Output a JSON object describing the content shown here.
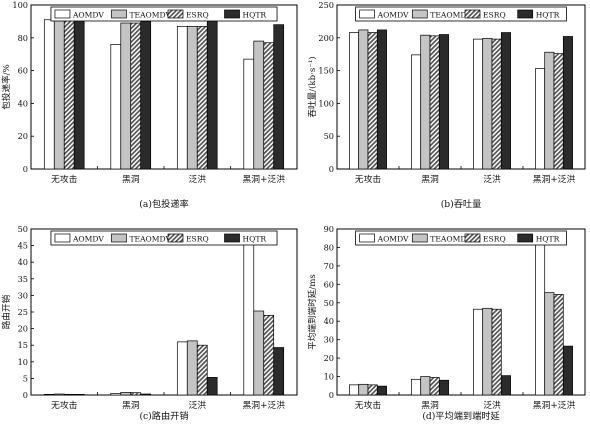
{
  "figure": {
    "legend_labels": [
      "AOMDV",
      "TEAOMDV",
      "ESRQ",
      "HQTR"
    ],
    "colors": {
      "AOMDV": "#ffffff",
      "TEAOMDV": "#c4c4c4",
      "ESRQ": "#8a8a8a",
      "HQTR": "#2b2b2b",
      "axis": "#000000"
    }
  },
  "chart_data": [
    {
      "type": "bar",
      "caption": "(a)包投递率",
      "xlabel": "",
      "ylabel": "包投递率/%",
      "categories": [
        "无攻击",
        "黑洞",
        "泛洪",
        "黑洞+泛洪"
      ],
      "ylim": [
        0,
        100
      ],
      "yticks": [
        0,
        20,
        40,
        60,
        80,
        100
      ],
      "legend_position": "top-center",
      "series": [
        {
          "name": "AOMDV",
          "values": [
            91,
            76,
            87,
            67
          ]
        },
        {
          "name": "TEAOMDV",
          "values": [
            93,
            89,
            87,
            78
          ]
        },
        {
          "name": "ESRQ",
          "values": [
            91,
            89,
            87,
            77
          ]
        },
        {
          "name": "HQTR",
          "values": [
            93,
            90,
            91,
            88
          ]
        }
      ]
    },
    {
      "type": "bar",
      "caption": "(b)吞吐量",
      "xlabel": "",
      "ylabel": "吞吐量/(kb·s⁻¹)",
      "categories": [
        "无攻击",
        "黑洞",
        "泛洪",
        "黑洞+泛洪"
      ],
      "ylim": [
        0,
        250
      ],
      "yticks": [
        0,
        50,
        100,
        150,
        200,
        250
      ],
      "legend_position": "top-center",
      "series": [
        {
          "name": "AOMDV",
          "values": [
            208,
            174,
            198,
            153
          ]
        },
        {
          "name": "TEAOMDV",
          "values": [
            212,
            204,
            199,
            178
          ]
        },
        {
          "name": "ESRQ",
          "values": [
            208,
            203,
            198,
            176
          ]
        },
        {
          "name": "HQTR",
          "values": [
            212,
            205,
            208,
            202
          ]
        }
      ]
    },
    {
      "type": "bar",
      "caption": "(c)路由开销",
      "xlabel": "",
      "ylabel": "路由开销",
      "categories": [
        "无攻击",
        "黑洞",
        "泛洪",
        "黑洞+泛洪"
      ],
      "ylim": [
        0,
        50
      ],
      "yticks": [
        0,
        5,
        10,
        15,
        20,
        25,
        30,
        35,
        40,
        45,
        50
      ],
      "legend_position": "top-center",
      "series": [
        {
          "name": "AOMDV",
          "values": [
            0.2,
            0.5,
            16.0,
            45.5
          ]
        },
        {
          "name": "TEAOMDV",
          "values": [
            0.3,
            0.8,
            16.3,
            25.3
          ]
        },
        {
          "name": "ESRQ",
          "values": [
            0.2,
            0.7,
            15.0,
            24.0
          ]
        },
        {
          "name": "HQTR",
          "values": [
            0.2,
            0.3,
            5.3,
            14.3
          ]
        }
      ]
    },
    {
      "type": "bar",
      "caption": "(d)平均端到端时延",
      "xlabel": "",
      "ylabel": "平均端到端时延/ms",
      "categories": [
        "无攻击",
        "黑洞",
        "泛洪",
        "黑洞+泛洪"
      ],
      "ylim": [
        0,
        90
      ],
      "yticks": [
        0,
        10,
        20,
        30,
        40,
        50,
        60,
        70,
        80,
        90
      ],
      "legend_position": "top-center",
      "series": [
        {
          "name": "AOMDV",
          "values": [
            5.5,
            8.5,
            46.5,
            83
          ]
        },
        {
          "name": "TEAOMDV",
          "values": [
            5.8,
            10,
            47,
            55.5
          ]
        },
        {
          "name": "ESRQ",
          "values": [
            5.5,
            9.5,
            46.5,
            54.5
          ]
        },
        {
          "name": "HQTR",
          "values": [
            4.8,
            8,
            10.5,
            26.5
          ]
        }
      ]
    }
  ]
}
